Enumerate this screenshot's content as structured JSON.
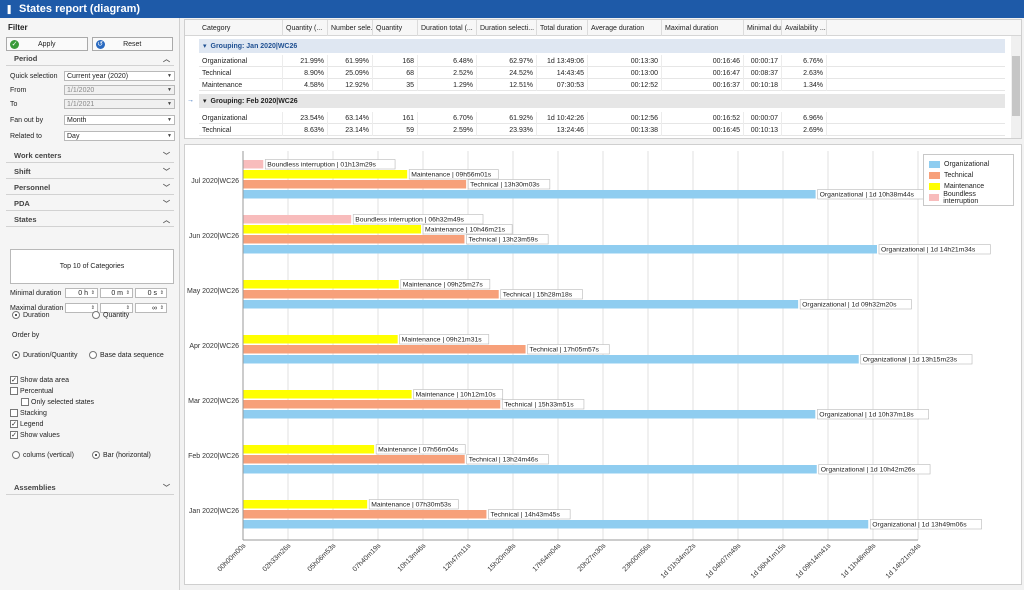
{
  "window": {
    "title": "States report (diagram)"
  },
  "filter": {
    "header": "Filter",
    "apply_label": "Apply",
    "reset_label": "Reset",
    "sections": {
      "period": "Period",
      "work_centers": "Work centers",
      "shift": "Shift",
      "personnel": "Personnel",
      "pda": "PDA",
      "states": "States",
      "assemblies": "Assemblies"
    },
    "quick_selection_label": "Quick selection",
    "quick_selection_value": "Current year (2020)",
    "from_label": "From",
    "from_value": "1/1/2020",
    "to_label": "To",
    "to_value": "1/1/2021",
    "fan_out_label": "Fan out by",
    "fan_out_value": "Month",
    "related_label": "Related to",
    "related_value": "Day",
    "top10_label": "Top 10 of Categories",
    "min_duration_label": "Minimal duration",
    "min_h": "0 h",
    "min_m": "0 m",
    "min_s": "0 s",
    "max_duration_label": "Maximal duration",
    "max_inf": "∞",
    "duration_radio": "Duration",
    "quantity_radio": "Quantity",
    "order_by_label": "Order by",
    "order_dq": "Duration/Quantity",
    "order_base": "Base data sequence",
    "show_data_area": "Show data area",
    "percentual": "Percentual",
    "only_selected": "Only selected states",
    "stacking": "Stacking",
    "legend": "Legend",
    "show_values": "Show values",
    "colums_vertical": "colums (vertical)",
    "bar_horizontal": "Bar (horizontal)"
  },
  "grid": {
    "columns": [
      "Category",
      "Quantity (...",
      "Number sele...",
      "Quantity",
      "Duration total (...",
      "Duration selecti...",
      "Total duration",
      "Average duration",
      "Maximal duration",
      "Minimal durati...",
      "Availability ..."
    ],
    "groups": [
      {
        "title": "Grouping: Jan 2020|WC26",
        "rows": [
          [
            "Organizational",
            "21.99%",
            "61.99%",
            "168",
            "6.48%",
            "62.97%",
            "1d 13:49:06",
            "00:13:30",
            "00:16:46",
            "00:00:17",
            "6.76%"
          ],
          [
            "Technical",
            "8.90%",
            "25.09%",
            "68",
            "2.52%",
            "24.52%",
            "14:43:45",
            "00:13:00",
            "00:16:47",
            "00:08:37",
            "2.63%"
          ],
          [
            "Maintenance",
            "4.58%",
            "12.92%",
            "35",
            "1.29%",
            "12.51%",
            "07:30:53",
            "00:12:52",
            "00:16:37",
            "00:10:18",
            "1.34%"
          ]
        ]
      },
      {
        "title": "Grouping: Feb 2020|WC26",
        "rows": [
          [
            "Organizational",
            "23.54%",
            "63.14%",
            "161",
            "6.70%",
            "61.92%",
            "1d 10:42:26",
            "00:12:56",
            "00:16:52",
            "00:00:07",
            "6.96%"
          ],
          [
            "Technical",
            "8.63%",
            "23.14%",
            "59",
            "2.59%",
            "23.93%",
            "13:24:46",
            "00:13:38",
            "00:16:45",
            "00:10:13",
            "2.69%"
          ]
        ]
      }
    ]
  },
  "chart_data": {
    "type": "bar",
    "orientation": "horizontal",
    "categories": [
      "Jul 2020|WC26",
      "Jun 2020|WC26",
      "May 2020|WC26",
      "Apr 2020|WC26",
      "Mar 2020|WC26",
      "Feb 2020|WC26",
      "Jan 2020|WC26"
    ],
    "x_ticks": [
      "00h00m00s",
      "02h33m26s",
      "05h06m53s",
      "07h40m19s",
      "10h13m46s",
      "12h47m11s",
      "15h20m38s",
      "17h54m04s",
      "20h27m30s",
      "23h00m56s",
      "1d 01h34m22s",
      "1d 04h07m49s",
      "1d 06h41m15s",
      "1d 09h14m41s",
      "1d 11h48m08s",
      "1d 14h21m34s"
    ],
    "x_unit": "hours",
    "xlim": [
      0,
      40.84
    ],
    "legend_position": "top-right",
    "grid": true,
    "series": [
      {
        "name": "Organizational",
        "color": "#8fcdf0",
        "values": [
          34.645,
          38.359,
          33.589,
          37.254,
          34.627,
          34.715,
          37.831
        ],
        "labels": [
          "Organizational | 1d 10h38m44s",
          "Organizational | 1d 14h21m34s",
          "Organizational | 1d 09h32m20s",
          "Organizational | 1d 13h15m23s",
          "Organizational | 1d 10h37m18s",
          "Organizational | 1d 10h42m26s",
          "Organizational | 1d 13h49m06s"
        ]
      },
      {
        "name": "Technical",
        "color": "#f7a07a",
        "values": [
          13.501,
          13.399,
          15.472,
          17.096,
          15.564,
          13.413,
          14.729
        ],
        "labels": [
          "Technical | 13h30m03s",
          "Technical | 13h23m59s",
          "Technical | 15h28m18s",
          "Technical | 17h05m57s",
          "Technical | 15h33m51s",
          "Technical | 13h24m46s",
          "Technical | 14h43m45s"
        ]
      },
      {
        "name": "Maintenance",
        "color": "#ffff00",
        "values": [
          9.934,
          10.773,
          9.424,
          9.359,
          10.203,
          7.934,
          7.514
        ],
        "labels": [
          "Maintenance | 09h56m01s",
          "Maintenance | 10h46m21s",
          "Maintenance | 09h25m27s",
          "Maintenance | 09h21m31s",
          "Maintenance | 10h12m10s",
          "Maintenance | 07h56m04s",
          "Maintenance | 07h30m53s"
        ]
      },
      {
        "name": "Boundless interruption",
        "color": "#f8bcbc",
        "values": [
          1.226,
          6.547,
          null,
          null,
          null,
          null,
          null
        ],
        "labels": [
          "Boundless interruption | 01h13m29s",
          "Boundless interruption | 06h32m49s",
          "",
          "",
          "",
          "",
          ""
        ]
      }
    ]
  }
}
